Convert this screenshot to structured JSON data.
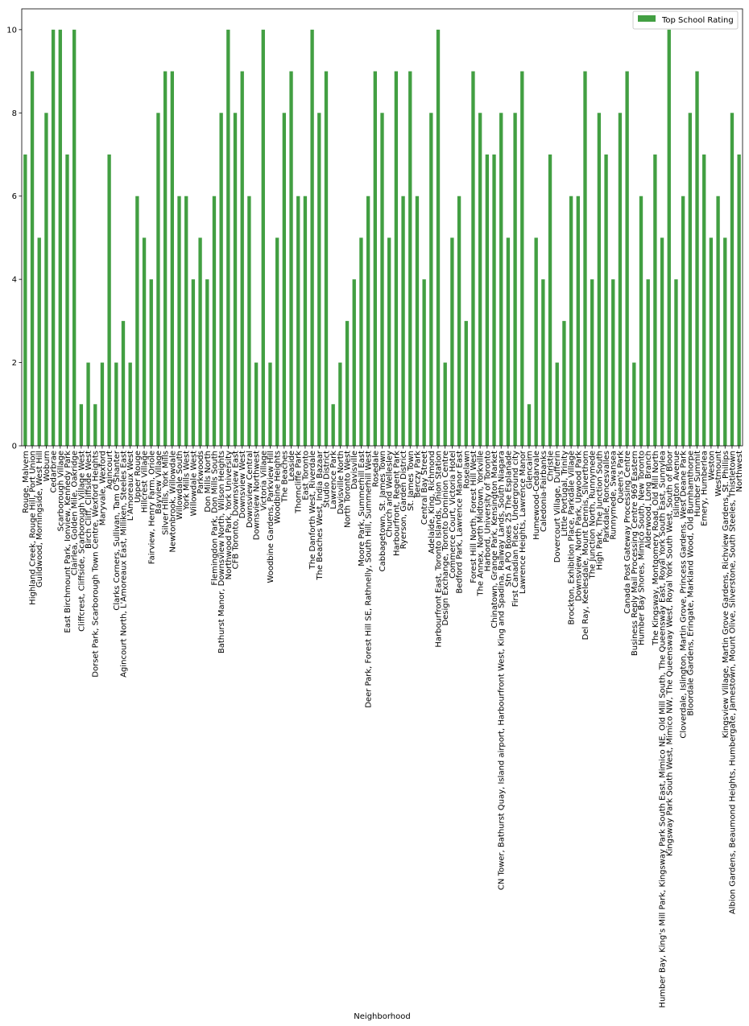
{
  "chart_data": {
    "type": "bar",
    "xlabel": "Neighborhood",
    "ylabel": "",
    "ylim": [
      0,
      10.5
    ],
    "yticks": [
      0,
      2,
      4,
      6,
      8,
      10
    ],
    "grid": false,
    "legend_position": "top-right",
    "series": [
      {
        "name": "Top School Rating",
        "color": "#429f42"
      }
    ],
    "categories": [
      "Rouge, Malvern",
      "Highland Creek, Rouge Hill, Port Union",
      "Guildwood, Morningside, West Hill",
      "Woburn",
      "Cedarbrae",
      "Scarborough Village",
      "East Birchmount Park, Ionview, Kennedy Park",
      "Clairlea, Golden Mile, Oakridge",
      "Cliffcrest, Cliffside, Scarborough Village West",
      "Birch Cliff, Cliffside West",
      "Dorset Park, Scarborough Town Centre, Wexford Heights",
      "Maryvale, Wexford",
      "Agincourt",
      "Clarks Corners, Sullivan, Tam O'Shanter",
      "Agincourt North, L'Amoreaux East, Milliken, Steeles East",
      "L'Amoreaux West",
      "Upper Rouge",
      "Hillcrest Village",
      "Fairview, Henry Farm, Oriole",
      "Bayview Village",
      "Silver Hills, York Mills",
      "Newtonbrook, Willowdale",
      "Willowdale South",
      "York Mills West",
      "Willowdale West",
      "Parkwoods",
      "Don Mills North",
      "Flemingdon Park, Don Mills South",
      "Bathurst Manor, Downsview North, Wilson Heights",
      "Northwood Park, York University",
      "CFB Toronto, Downsview East",
      "Downsview West",
      "Downsview Central",
      "Downsview Northwest",
      "Victoria Village",
      "Woodbine Gardens, Parkview Hill",
      "Woodbine Heights",
      "The Beaches",
      "Leaside",
      "Thorncliffe Park",
      "East Toronto",
      "The Danforth West, Riverdale",
      "The Beaches West, India Bazaar",
      "Studio District",
      "Lawrence Park",
      "Davisville North",
      "North Toronto West",
      "Davisville",
      "Moore Park, Summerhill East",
      "Deer Park, Forest Hill SE, Rathnelly, South Hill, Summerhill West",
      "Rosedale",
      "Cabbagetown, St. James Town",
      "Church and Wellesley",
      "Harbourfront, Regent Park",
      "Ryerson, Garden District",
      "St. James Town",
      "Berczy Park",
      "Central Bay Street",
      "Adelaide, King, Richmond",
      "Harbourfront East, Toronto Islands, Union Station",
      "Design Exchange, Toronto Dominion Centre",
      "Commerce Court, Victoria Hotel",
      "Bedford Park, Lawrence Manor East",
      "Roselawn",
      "Forest Hill North, Forest Hill West",
      "The Annex, North Midtown, Yorkville",
      "Harbord, University of Toronto",
      "Chinatown, Grange Park, Kensington Market",
      "CN Tower, Bathurst Quay, Island airport, Harbourfront West, King and Spadina, Railway Lands, South Niagara",
      "Stn A PO Boxes 25 The Esplanade",
      "First Canadian Place, Underground city",
      "Lawrence Heights, Lawrence Manor",
      "Glencairn",
      "Humewood-Cedarvale",
      "Caledonia-Fairbanks",
      "Christie",
      "Dovercourt Village, Dufferin",
      "Little Portugal, Trinity",
      "Brockton, Exhibition Place, Parkdale Village",
      "Downsview, North Park, Upwood Park",
      "Del Ray, Keelesdale, Mount Dennis, Silverthorn",
      "The Junction North, Runnymede",
      "High Park, The Junction South",
      "Parkdale, Roncesvalles",
      "Runnymede, Swansea",
      "Queen's Park",
      "Canada Post Gateway Processing Centre",
      "Business Reply Mail Processing Centre 969 Eastern",
      "Humber Bay Shores, Mimico South, New Toronto",
      "Alderwood, Long Branch",
      "The Kingsway, Montgomery Road, Old Mill North",
      "Humber Bay, King's Mill Park, Kingsway Park South East, Mimico NE, Old Mill South, The Queensway East, Royal York South East, Sunnylea",
      "Kingsway Park South West, Mimico NW, The Queensway West, Royal York South West, South of Bloor",
      "Islington Avenue",
      "Cloverdale, Islington, Martin Grove, Princess Gardens, West Deane Park",
      "Bloordale Gardens, Eringate, Markland Wood, Old Burnhamthorpe",
      "Humber Summit",
      "Emery, Humberlea",
      "Weston",
      "Westmount",
      "Kingsview Village, Martin Grove Gardens, Richview Gardens, St. Phillips",
      "Albion Gardens, Beaumond Heights, Humbergate, Jamestown, Mount Olive, Silverstone, South Steeles, Thistletown",
      "Northwest"
    ],
    "values": [
      7,
      9,
      5,
      8,
      10,
      10,
      7,
      10,
      1,
      2,
      1,
      2,
      7,
      2,
      3,
      2,
      6,
      5,
      4,
      8,
      9,
      9,
      6,
      6,
      4,
      5,
      4,
      6,
      8,
      10,
      8,
      9,
      6,
      2,
      10,
      2,
      5,
      8,
      9,
      6,
      6,
      10,
      8,
      9,
      1,
      2,
      3,
      4,
      5,
      6,
      9,
      8,
      5,
      9,
      6,
      9,
      6,
      4,
      8,
      10,
      2,
      5,
      6,
      3,
      9,
      8,
      7,
      7,
      8,
      5,
      8,
      9,
      1,
      5,
      4,
      7,
      2,
      3,
      6,
      6,
      9,
      4,
      8,
      7,
      4,
      8,
      9,
      2,
      6,
      4,
      7,
      5,
      10,
      4,
      6,
      8,
      9,
      7,
      5,
      6,
      5,
      8,
      7
    ]
  }
}
